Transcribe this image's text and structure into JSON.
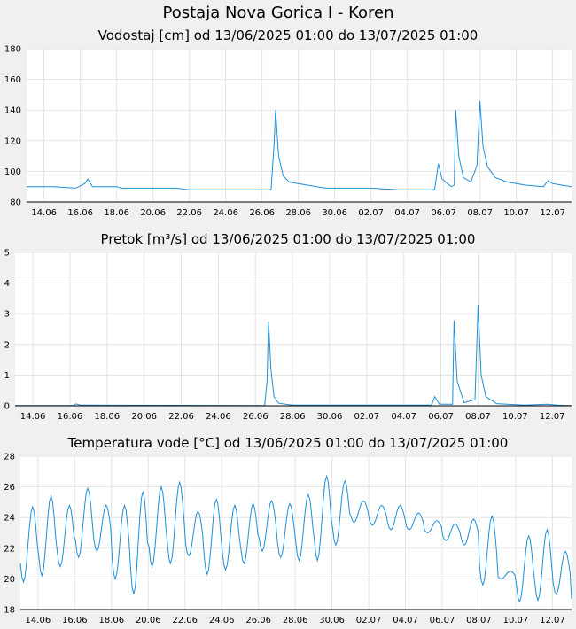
{
  "page": {
    "title": "Postaja Nova Gorica I - Koren"
  },
  "x_labels": [
    "14.06",
    "16.06",
    "18.06",
    "20.06",
    "22.06",
    "24.06",
    "26.06",
    "28.06",
    "30.06",
    "02.07",
    "04.07",
    "06.07",
    "08.07",
    "10.07",
    "12.07"
  ],
  "colors": {
    "line": "#1f8fd6",
    "background": "#f0f0f0",
    "plot": "#ffffff"
  },
  "chart_data": [
    {
      "type": "line",
      "title": "Vodostaj [cm] od 13/06/2025 01:00 do 13/07/2025 01:00",
      "x_range": [
        "13/06/2025 01:00",
        "13/07/2025 01:00"
      ],
      "ylim": [
        80,
        180
      ],
      "yticks": [
        80,
        100,
        120,
        140,
        160,
        180
      ],
      "grid": true,
      "series": [
        {
          "points": [
            [
              "13.06 01:00",
              90
            ],
            [
              "14.06 12:00",
              90
            ],
            [
              "15.06 18:00",
              89
            ],
            [
              "16.06 06:00",
              92
            ],
            [
              "16.06 10:00",
              95
            ],
            [
              "16.06 16:00",
              90
            ],
            [
              "18.06 00:00",
              90
            ],
            [
              "18.06 06:00",
              89
            ],
            [
              "20.06 06:00",
              89
            ],
            [
              "21.06 06:00",
              89
            ],
            [
              "22.06 00:00",
              88
            ],
            [
              "24.06 00:00",
              88
            ],
            [
              "25.06 00:00",
              88
            ],
            [
              "26.06 12:00",
              88
            ],
            [
              "26.06 16:00",
              118
            ],
            [
              "26.06 18:00",
              140
            ],
            [
              "26.06 22:00",
              110
            ],
            [
              "27.06 04:00",
              97
            ],
            [
              "27.06 12:00",
              93
            ],
            [
              "28.06 12:00",
              91
            ],
            [
              "29.06 12:00",
              89
            ],
            [
              "01.07 00:00",
              89
            ],
            [
              "02.07 00:00",
              89
            ],
            [
              "03.07 12:00",
              88
            ],
            [
              "05.07 12:00",
              88
            ],
            [
              "05.07 17:00",
              105
            ],
            [
              "05.07 22:00",
              95
            ],
            [
              "06.07 10:00",
              90
            ],
            [
              "06.07 14:00",
              91
            ],
            [
              "06.07 16:00",
              140
            ],
            [
              "06.07 20:00",
              110
            ],
            [
              "07.07 02:00",
              96
            ],
            [
              "07.07 12:00",
              93
            ],
            [
              "07.07 20:00",
              104
            ],
            [
              "08.07 00:00",
              146
            ],
            [
              "08.07 04:00",
              116
            ],
            [
              "08.07 10:00",
              103
            ],
            [
              "08.07 20:00",
              96
            ],
            [
              "09.07 12:00",
              93
            ],
            [
              "10.07 12:00",
              91
            ],
            [
              "11.07 12:00",
              90
            ],
            [
              "11.07 18:00",
              94
            ],
            [
              "12.07 00:00",
              92
            ],
            [
              "12.07 12:00",
              91
            ],
            [
              "13.07 01:00",
              90
            ]
          ]
        }
      ]
    },
    {
      "type": "line",
      "title": "Pretok [m³/s] od 13/06/2025 01:00 do 13/07/2025 01:00",
      "x_range": [
        "13/06/2025 01:00",
        "13/07/2025 01:00"
      ],
      "ylim": [
        0,
        5
      ],
      "yticks": [
        0,
        1,
        2,
        3,
        4,
        5
      ],
      "grid": true,
      "series": [
        {
          "points": [
            [
              "13.06 01:00",
              0.01
            ],
            [
              "16.06 04:00",
              0.01
            ],
            [
              "16.06 08:00",
              0.06
            ],
            [
              "16.06 14:00",
              0.02
            ],
            [
              "26.06 12:00",
              0.01
            ],
            [
              "26.06 15:00",
              0.8
            ],
            [
              "26.06 17:00",
              2.75
            ],
            [
              "26.06 20:00",
              1.2
            ],
            [
              "27.06 00:00",
              0.3
            ],
            [
              "27.06 06:00",
              0.08
            ],
            [
              "28.06 00:00",
              0.02
            ],
            [
              "05.07 12:00",
              0.02
            ],
            [
              "05.07 16:00",
              0.3
            ],
            [
              "05.07 22:00",
              0.05
            ],
            [
              "06.07 15:00",
              0.05
            ],
            [
              "06.07 17:00",
              2.78
            ],
            [
              "06.07 21:00",
              0.8
            ],
            [
              "07.07 06:00",
              0.1
            ],
            [
              "07.07 20:00",
              0.2
            ],
            [
              "08.07 00:00",
              3.3
            ],
            [
              "08.07 04:00",
              1.0
            ],
            [
              "08.07 10:00",
              0.3
            ],
            [
              "09.07 00:00",
              0.07
            ],
            [
              "10.07 12:00",
              0.02
            ],
            [
              "11.07 18:00",
              0.05
            ],
            [
              "12.07 06:00",
              0.02
            ],
            [
              "13.07 01:00",
              0.01
            ]
          ]
        }
      ]
    },
    {
      "type": "line",
      "title": "Temperatura vode [°C] od 13/06/2025 01:00 do 13/07/2025 01:00",
      "x_range": [
        "13/06/2025 01:00",
        "13/07/2025 01:00"
      ],
      "ylim": [
        18,
        28
      ],
      "yticks": [
        18,
        20,
        22,
        24,
        26,
        28
      ],
      "grid": true,
      "series": [
        {
          "daily_min": [
            19.8,
            20.2,
            20.8,
            21.4,
            21.8,
            20.0,
            19.0,
            20.8,
            21.0,
            21.5,
            20.3,
            20.6,
            21.0,
            21.8,
            21.4,
            21.2,
            21.2,
            22.2,
            23.7,
            23.5,
            23.2,
            23.2,
            23.0,
            22.5,
            22.2,
            19.6,
            20.0,
            18.5,
            18.6,
            19.0,
            18.0
          ],
          "daily_max": [
            24.7,
            25.4,
            24.8,
            25.9,
            24.8,
            24.8,
            25.7,
            26.0,
            26.3,
            24.4,
            25.2,
            24.8,
            24.9,
            25.1,
            24.9,
            25.5,
            26.7,
            26.4,
            25.1,
            24.8,
            24.8,
            24.3,
            23.8,
            23.6,
            23.9,
            24.1,
            20.5,
            22.8,
            23.2,
            21.8,
            20.8
          ]
        }
      ]
    }
  ]
}
